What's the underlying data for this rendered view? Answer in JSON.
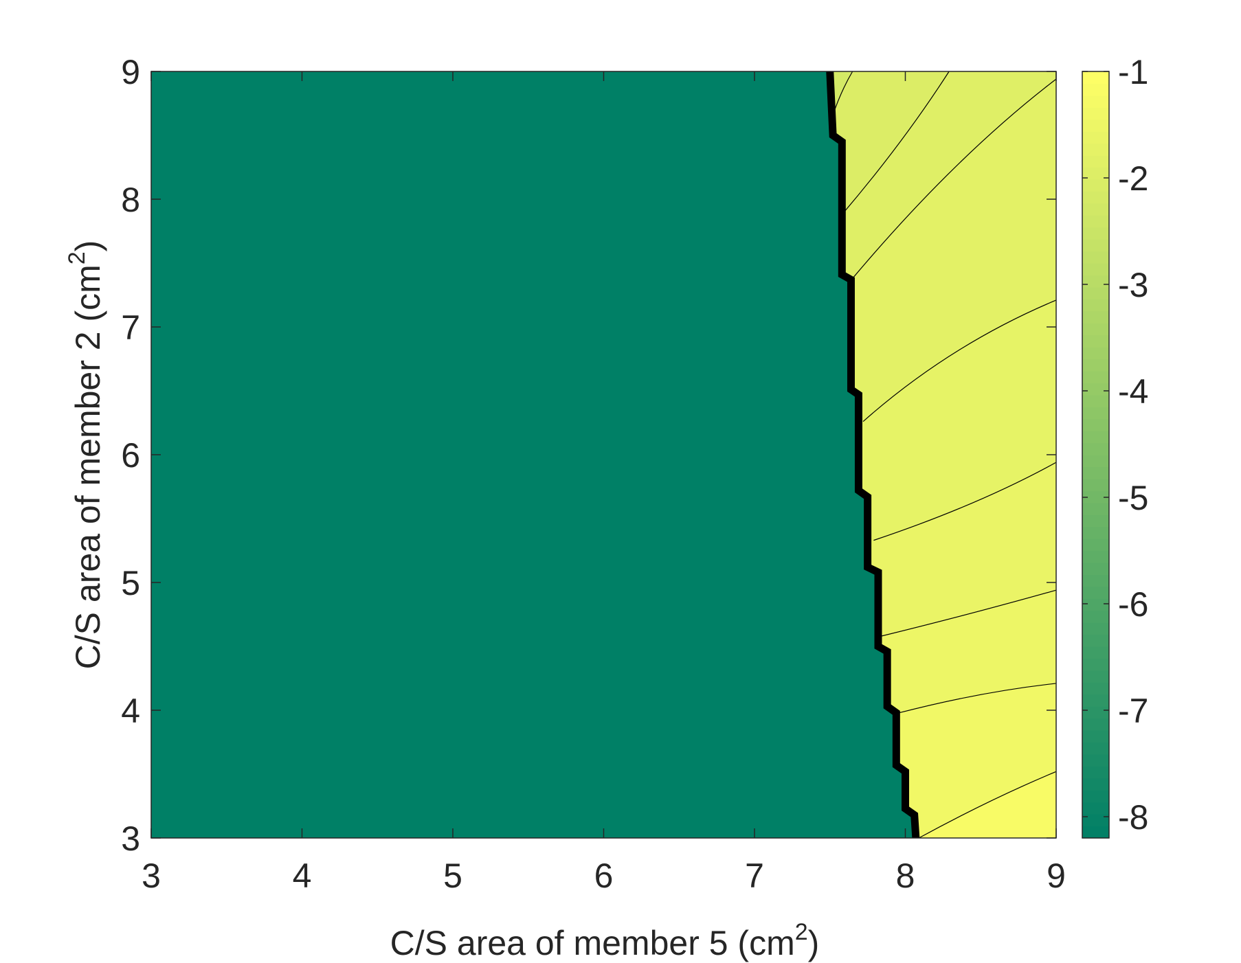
{
  "chart_data": {
    "type": "contour",
    "xlabel": {
      "text": "C/S area of member 5 (cm",
      "superscript": "2",
      "suffix": ")"
    },
    "ylabel": {
      "text": "C/S area of member 2 (cm",
      "superscript": "2",
      "suffix": ")"
    },
    "xlim": [
      3,
      9
    ],
    "ylim": [
      3,
      9
    ],
    "xticks": [
      3,
      4,
      5,
      6,
      7,
      8,
      9
    ],
    "yticks": [
      3,
      4,
      5,
      6,
      7,
      8,
      9
    ],
    "clim": [
      -8.2,
      -1
    ],
    "cticks": [
      -1,
      -2,
      -3,
      -4,
      -5,
      -6,
      -7,
      -8
    ],
    "colormap": "summer",
    "infeasible_level": -8.2,
    "base_level": -2.2,
    "boundary": {
      "color": "#000000",
      "x": [
        7.5,
        7.52,
        7.58,
        7.58,
        7.64,
        7.64,
        7.69,
        7.69,
        7.75,
        7.75,
        7.82,
        7.82,
        7.88,
        7.88,
        7.94,
        7.94,
        8.0,
        8.0,
        8.06,
        8.07
      ],
      "y": [
        9,
        8.5,
        8.45,
        7.41,
        7.37,
        6.51,
        6.47,
        5.72,
        5.67,
        5.12,
        5.08,
        4.5,
        4.46,
        4.03,
        3.98,
        3.57,
        3.52,
        3.23,
        3.18,
        3
      ]
    },
    "contours": [
      {
        "level": -2.0,
        "x": [
          7.52,
          7.58,
          7.65
        ],
        "y": [
          8.66,
          8.84,
          9
        ]
      },
      {
        "level": -1.9,
        "x": [
          7.58,
          7.96,
          8.29
        ],
        "y": [
          7.88,
          8.44,
          9
        ]
      },
      {
        "level": -1.8,
        "x": [
          7.65,
          8.33,
          9
        ],
        "y": [
          7.38,
          8.25,
          8.94
        ]
      },
      {
        "level": -1.7,
        "x": [
          7.72,
          8.33,
          9
        ],
        "y": [
          6.26,
          6.8,
          7.21
        ]
      },
      {
        "level": -1.6,
        "x": [
          7.79,
          8.44,
          9
        ],
        "y": [
          5.33,
          5.62,
          5.94
        ]
      },
      {
        "level": -1.5,
        "x": [
          7.84,
          8.44,
          9
        ],
        "y": [
          4.58,
          4.76,
          4.94
        ]
      },
      {
        "level": -1.4,
        "x": [
          7.96,
          8.49,
          9
        ],
        "y": [
          3.98,
          4.12,
          4.21
        ]
      },
      {
        "level": -1.2,
        "x": [
          8.09,
          8.55,
          9
        ],
        "y": [
          3,
          3.28,
          3.52
        ]
      }
    ]
  }
}
